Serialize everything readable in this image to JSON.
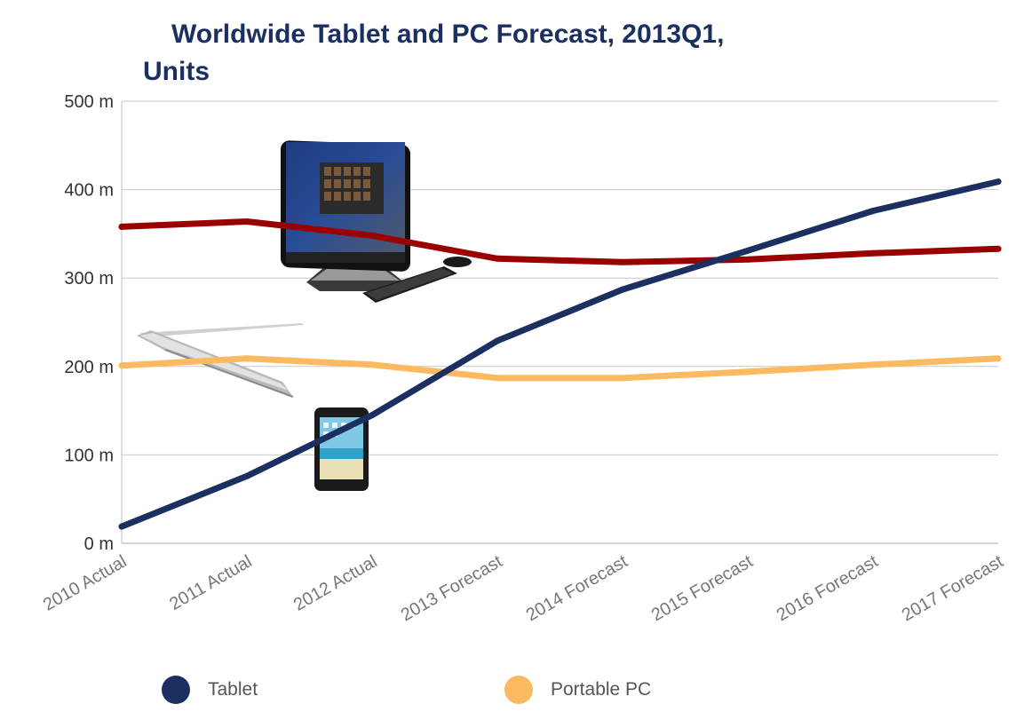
{
  "chart_data": {
    "type": "line",
    "title_lines": [
      "Worldwide Tablet and PC Forecast, 2013Q1,",
      "Units"
    ],
    "categories": [
      "2010 Actual",
      "2011 Actual",
      "2012 Actual",
      "2013 Forecast",
      "2014 Forecast",
      "2015 Forecast",
      "2016 Forecast",
      "2017 Forecast"
    ],
    "y_ticks": [
      "0 m",
      "100 m",
      "200 m",
      "300 m",
      "400 m",
      "500 m"
    ],
    "ylim": [
      0,
      500
    ],
    "grid": true,
    "legend_position": "bottom",
    "series": [
      {
        "name": "Tablet",
        "color": "#1b2f61",
        "values": [
          19,
          76,
          145,
          229,
          287,
          331,
          376,
          409
        ]
      },
      {
        "name": "Portable PC",
        "color": "#fbb960",
        "values": [
          201,
          209,
          202,
          187,
          187,
          194,
          202,
          209
        ]
      },
      {
        "color": "#9b0000",
        "values": [
          358,
          364,
          348,
          322,
          318,
          321,
          328,
          333
        ]
      }
    ],
    "illustrations": [
      "all-in-one-desktop-pc",
      "notebook-laptop",
      "tablet-device"
    ]
  }
}
